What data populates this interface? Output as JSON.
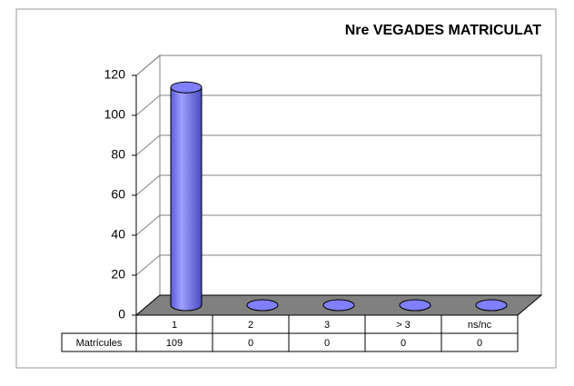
{
  "chart_data": {
    "type": "bar3d",
    "title": "Nre VEGADES MATRICULAT",
    "categories": [
      "1",
      "2",
      "3",
      "> 3",
      "ns/nc"
    ],
    "series": [
      {
        "name": "Matrícules",
        "color": "#7f7fff",
        "values": [
          109,
          0,
          0,
          0,
          0
        ]
      }
    ],
    "ylim": [
      0,
      120
    ],
    "yticks": [
      0,
      20,
      40,
      60,
      80,
      100,
      120
    ],
    "grid": true,
    "data_table": true
  }
}
